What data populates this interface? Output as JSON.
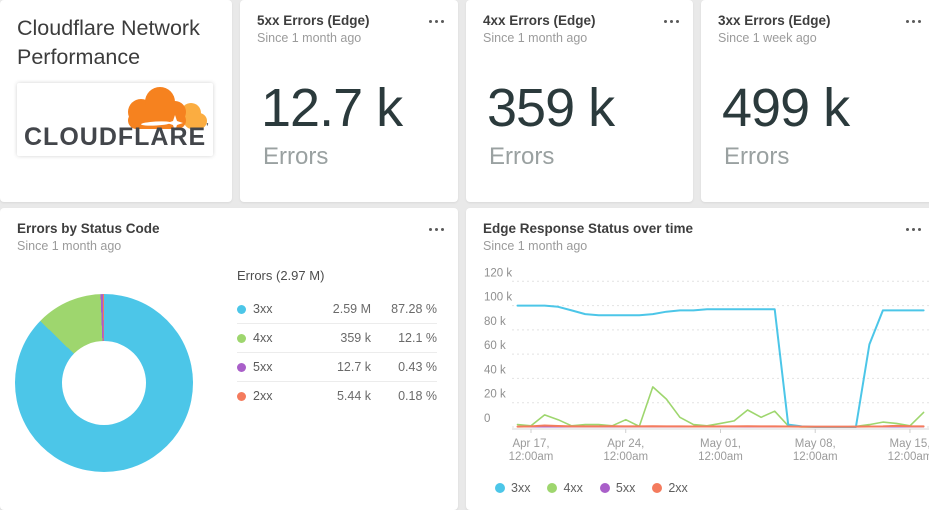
{
  "colors": {
    "cyan_3xx": "#4cc6e8",
    "green_4xx": "#9ed66e",
    "purple_5xx": "#a95fc9",
    "salmon_2xx": "#f47b5d",
    "big_number": "#2b3a3c",
    "cloudflare_orange": "#f6821f",
    "cloudflare_light_orange": "#fbad41"
  },
  "title_card": {
    "title": "Cloudflare Network Performance",
    "logo_text": "CLOUDFLARE",
    "logo_mark": "'"
  },
  "stat_cards": [
    {
      "title": "5xx Errors (Edge)",
      "subtitle": "Since 1 month ago",
      "value": "12.7 k",
      "unit": "Errors"
    },
    {
      "title": "4xx Errors (Edge)",
      "subtitle": "Since 1 month ago",
      "value": "359 k",
      "unit": "Errors"
    },
    {
      "title": "3xx Errors (Edge)",
      "subtitle": "Since 1 week ago",
      "value": "499 k",
      "unit": "Errors"
    }
  ],
  "donut_card": {
    "title": "Errors by Status Code",
    "subtitle": "Since 1 month ago"
  },
  "line_card": {
    "title": "Edge Response Status over time",
    "subtitle": "Since 1 month ago"
  },
  "chart_data": [
    {
      "type": "pie",
      "donut": true,
      "title": "Errors by Status Code",
      "subtitle": "Since 1 month ago",
      "total_label": "Errors (2.97 M)",
      "legend_position": "right",
      "segments": [
        {
          "label": "3xx",
          "value_text": "2.59 M",
          "percent_text": "87.28 %",
          "percent": 87.28,
          "color": "#4cc6e8"
        },
        {
          "label": "4xx",
          "value_text": "359 k",
          "percent_text": "12.1 %",
          "percent": 12.1,
          "color": "#9ed66e"
        },
        {
          "label": "5xx",
          "value_text": "12.7 k",
          "percent_text": "0.43 %",
          "percent": 0.43,
          "color": "#a95fc9"
        },
        {
          "label": "2xx",
          "value_text": "5.44 k",
          "percent_text": "0.18 %",
          "percent": 0.18,
          "color": "#f47b5d"
        }
      ]
    },
    {
      "type": "line",
      "title": "Edge Response Status over time",
      "subtitle": "Since 1 month ago",
      "grid": true,
      "legend_position": "bottom",
      "units": "thousands of errors",
      "ylim_k": [
        0,
        120
      ],
      "y_ticks": [
        {
          "label": "120 k",
          "value_k": 120
        },
        {
          "label": "100 k",
          "value_k": 100
        },
        {
          "label": "80 k",
          "value_k": 80
        },
        {
          "label": "60 k",
          "value_k": 60
        },
        {
          "label": "40 k",
          "value_k": 40
        },
        {
          "label": "20 k",
          "value_k": 20
        },
        {
          "label": "0",
          "value_k": 0
        }
      ],
      "x_start_day_offset": -1,
      "x_tick_days": [
        0,
        7,
        14,
        21,
        28
      ],
      "x_tick_labels": [
        [
          "Apr 17,",
          "12:00am"
        ],
        [
          "Apr 24,",
          "12:00am"
        ],
        [
          "May 01,",
          "12:00am"
        ],
        [
          "May 08,",
          "12:00am"
        ],
        [
          "May 15,",
          "12:00am"
        ]
      ],
      "series": [
        {
          "name": "3xx",
          "color": "#4cc6e8",
          "stroke_width": 2,
          "values_k": [
            100,
            100,
            100,
            99,
            96,
            93,
            92,
            92,
            92,
            92,
            93,
            95,
            96,
            96,
            97,
            97,
            97,
            97,
            97,
            97,
            2,
            0.5,
            0,
            0,
            0,
            0,
            68,
            96,
            96,
            96,
            96
          ]
        },
        {
          "name": "4xx",
          "color": "#9ed66e",
          "stroke_width": 1.6,
          "values_k": [
            2,
            1,
            10,
            6,
            1,
            2,
            2,
            1,
            6,
            0.5,
            33,
            23,
            8,
            2,
            1,
            3,
            5,
            14,
            8,
            13,
            1,
            0,
            0,
            0,
            0,
            0.5,
            2,
            4,
            3,
            1,
            12
          ]
        },
        {
          "name": "5xx",
          "color": "#a95fc9",
          "stroke_width": 1.2,
          "values_k": [
            0.1,
            0.1,
            0.1,
            0.1,
            0.1,
            0.1,
            0.1,
            0.1,
            0.1,
            0.1,
            0.1,
            0.1,
            0.1,
            0.1,
            0.1,
            0.1,
            0.1,
            0.1,
            0.1,
            0.1,
            0.1,
            0.1,
            0.1,
            0.1,
            0.1,
            0.1,
            0.1,
            0.1,
            0.1,
            0.1,
            0.1
          ]
        },
        {
          "name": "2xx",
          "color": "#f47b5d",
          "stroke_width": 2,
          "values_k": [
            0.3,
            0.5,
            1.2,
            0.8,
            0.5,
            0.5,
            0.5,
            0.6,
            0.5,
            0.5,
            0.7,
            0.5,
            0.5,
            0.4,
            0.4,
            0.5,
            0.5,
            0.6,
            0.5,
            0.5,
            0.4,
            0.3,
            0.3,
            0.3,
            0.3,
            0.3,
            0.4,
            0.5,
            0.9,
            0.6,
            0.5
          ]
        }
      ]
    }
  ]
}
